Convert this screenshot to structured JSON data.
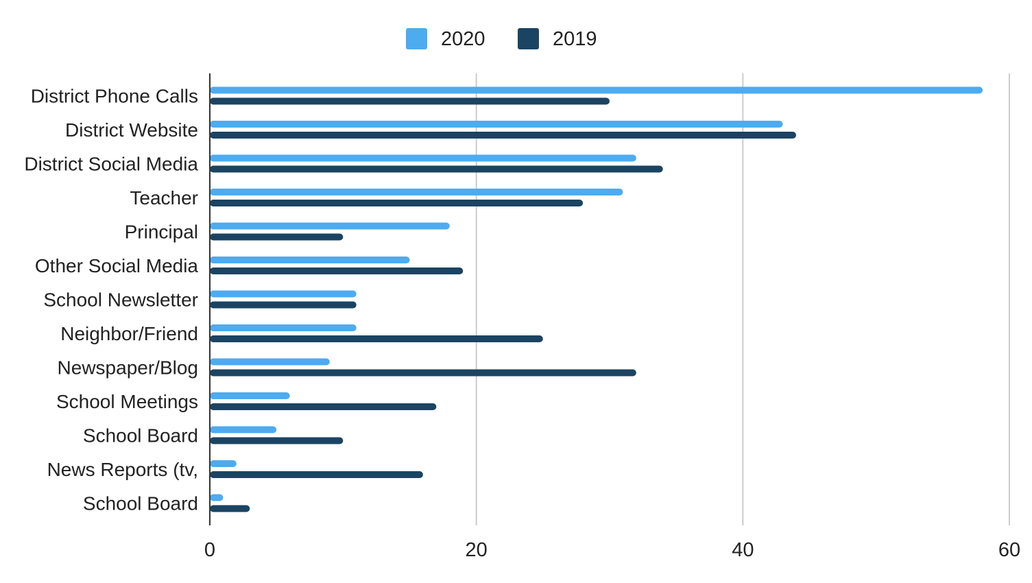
{
  "chart_data": {
    "type": "bar",
    "orientation": "horizontal",
    "legend_position": "top",
    "grid": true,
    "xlim": [
      0,
      60
    ],
    "x_ticks": [
      "0",
      "20",
      "40",
      "60"
    ],
    "categories": [
      "District Phone Calls",
      "District Website",
      "District Social Media",
      "Teacher",
      "Principal",
      "Other Social Media",
      "School Newsletter",
      "Neighbor/Friend",
      "Newspaper/Blog",
      "School Meetings",
      "School Board",
      "News Reports (tv,",
      "School Board"
    ],
    "series": [
      {
        "name": "2020",
        "color": "#4dabf0",
        "values": [
          58,
          43,
          32,
          31,
          18,
          15,
          11,
          11,
          9,
          6,
          5,
          2,
          1
        ]
      },
      {
        "name": "2019",
        "color": "#1b4462",
        "values": [
          30,
          44,
          34,
          28,
          10,
          19,
          11,
          25,
          32,
          17,
          10,
          16,
          3
        ]
      }
    ]
  }
}
